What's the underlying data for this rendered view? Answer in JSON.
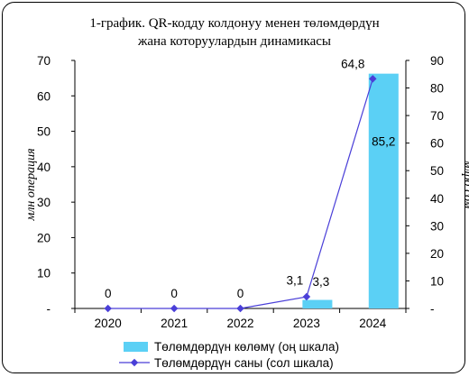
{
  "chart_data": {
    "type": "bar+line",
    "title_line1": "1-график. QR-кодду колдонуу менен төлөмдөрдүн",
    "title_line2": "жана которуулардын динамикасы",
    "categories": [
      "2020",
      "2021",
      "2022",
      "2023",
      "2024"
    ],
    "series": [
      {
        "name": "Төлөмдөрдүн көлөмү (оң шкала)",
        "type": "bar",
        "axis": "right",
        "color": "#5BD0F5",
        "values": [
          0,
          0,
          0,
          3.1,
          85.2
        ],
        "labels": [
          "",
          "",
          "",
          "3,1",
          "85,2"
        ]
      },
      {
        "name": "Төлөмдөрдүн саны (сол шкала)",
        "type": "line",
        "axis": "left",
        "color": "#4A3FD8",
        "values": [
          0,
          0,
          0,
          3.3,
          64.8
        ],
        "labels": [
          "0",
          "0",
          "0",
          "3,3",
          "64,8"
        ]
      }
    ],
    "left_axis": {
      "label": "млн операция",
      "ylim": [
        0,
        70
      ],
      "ticks": [
        0,
        10,
        20,
        30,
        40,
        50,
        60,
        70
      ],
      "tick_labels": [
        "-",
        "10",
        "20",
        "30",
        "40",
        "50",
        "60",
        "70"
      ]
    },
    "right_axis": {
      "label": "млрд сом",
      "ylim": [
        0,
        90
      ],
      "ticks": [
        0,
        10,
        20,
        30,
        40,
        50,
        60,
        70,
        80,
        90
      ],
      "tick_labels": [
        "-",
        "10",
        "20",
        "30",
        "40",
        "50",
        "60",
        "70",
        "80",
        "90"
      ]
    },
    "legend_position": "bottom",
    "grid": false
  }
}
